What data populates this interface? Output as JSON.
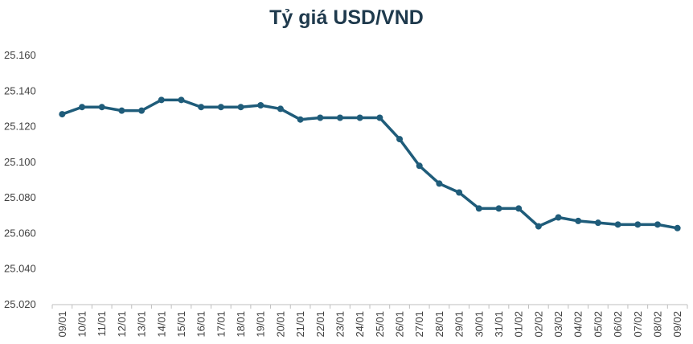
{
  "chart_data": {
    "type": "line",
    "title": "Tỷ giá USD/VND",
    "xlabel": "",
    "ylabel": "",
    "ylim": [
      25020,
      25160
    ],
    "yticks": [
      "25.020",
      "25.040",
      "25.060",
      "25.080",
      "25.100",
      "25.120",
      "25.140",
      "25.160"
    ],
    "ytick_values": [
      25020,
      25040,
      25060,
      25080,
      25100,
      25120,
      25140,
      25160
    ],
    "grid": false,
    "legend": "none",
    "line_color": "#1f5c7a",
    "categories": [
      "09/01",
      "10/01",
      "11/01",
      "12/01",
      "13/01",
      "14/01",
      "15/01",
      "16/01",
      "17/01",
      "18/01",
      "19/01",
      "20/01",
      "21/01",
      "22/01",
      "23/01",
      "24/01",
      "25/01",
      "26/01",
      "27/01",
      "28/01",
      "29/01",
      "30/01",
      "31/01",
      "01/02",
      "02/02",
      "03/02",
      "04/02",
      "05/02",
      "06/02",
      "07/02",
      "08/02",
      "09/02"
    ],
    "series": [
      {
        "values": [
          25127,
          25131,
          25131,
          25129,
          25129,
          25135,
          25135,
          25131,
          25131,
          25131,
          25132,
          25130,
          25124,
          25125,
          25125,
          25125,
          25125,
          25113,
          25098,
          25088,
          25083,
          25074,
          25074,
          25074,
          25064,
          25069,
          25067,
          25066,
          25065,
          25065,
          25065,
          25063
        ]
      }
    ]
  }
}
